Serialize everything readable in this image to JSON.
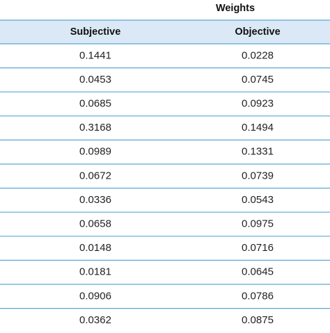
{
  "table": {
    "group_header": "Weights",
    "columns": [
      "Subjective",
      "Objective"
    ],
    "rows": [
      [
        "0.1441",
        "0.0228"
      ],
      [
        "0.0453",
        "0.0745"
      ],
      [
        "0.0685",
        "0.0923"
      ],
      [
        "0.3168",
        "0.1494"
      ],
      [
        "0.0989",
        "0.1331"
      ],
      [
        "0.0672",
        "0.0739"
      ],
      [
        "0.0336",
        "0.0543"
      ],
      [
        "0.0658",
        "0.0975"
      ],
      [
        "0.0148",
        "0.0716"
      ],
      [
        "0.0181",
        "0.0645"
      ],
      [
        "0.0906",
        "0.0786"
      ],
      [
        "0.0362",
        "0.0875"
      ]
    ]
  }
}
